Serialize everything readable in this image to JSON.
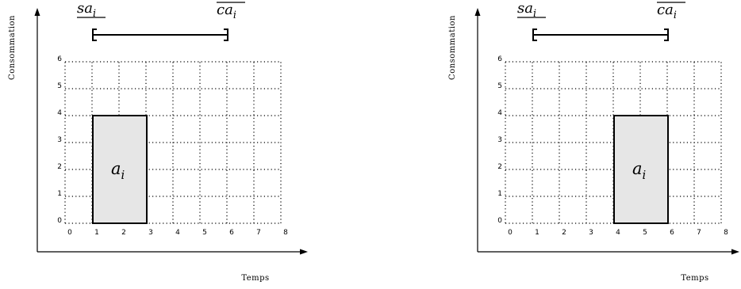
{
  "panels": [
    {
      "id": "left",
      "x_axis_label": "Temps",
      "y_axis_label": "Consommation",
      "x_ticks": [
        "0",
        "1",
        "2",
        "3",
        "4",
        "5",
        "6",
        "7",
        "8"
      ],
      "y_ticks": [
        "0",
        "1",
        "2",
        "3",
        "4",
        "5",
        "6"
      ],
      "task": {
        "label": "a",
        "subscript": "i",
        "start": 1,
        "end": 3,
        "height": 4
      },
      "window": {
        "start_label": "sa",
        "start_sub": "i",
        "start_value": 1,
        "end_label": "ca",
        "end_sub": "i",
        "end_value": 6
      }
    },
    {
      "id": "right",
      "x_axis_label": "Temps",
      "y_axis_label": "Consommation",
      "x_ticks": [
        "0",
        "1",
        "2",
        "3",
        "4",
        "5",
        "6",
        "7",
        "8"
      ],
      "y_ticks": [
        "0",
        "1",
        "2",
        "3",
        "4",
        "5",
        "6"
      ],
      "task": {
        "label": "a",
        "subscript": "i",
        "start": 4,
        "end": 6,
        "height": 4
      },
      "window": {
        "start_label": "sa",
        "start_sub": "i",
        "start_value": 1,
        "end_label": "ca",
        "end_sub": "i",
        "end_value": 6
      }
    }
  ]
}
